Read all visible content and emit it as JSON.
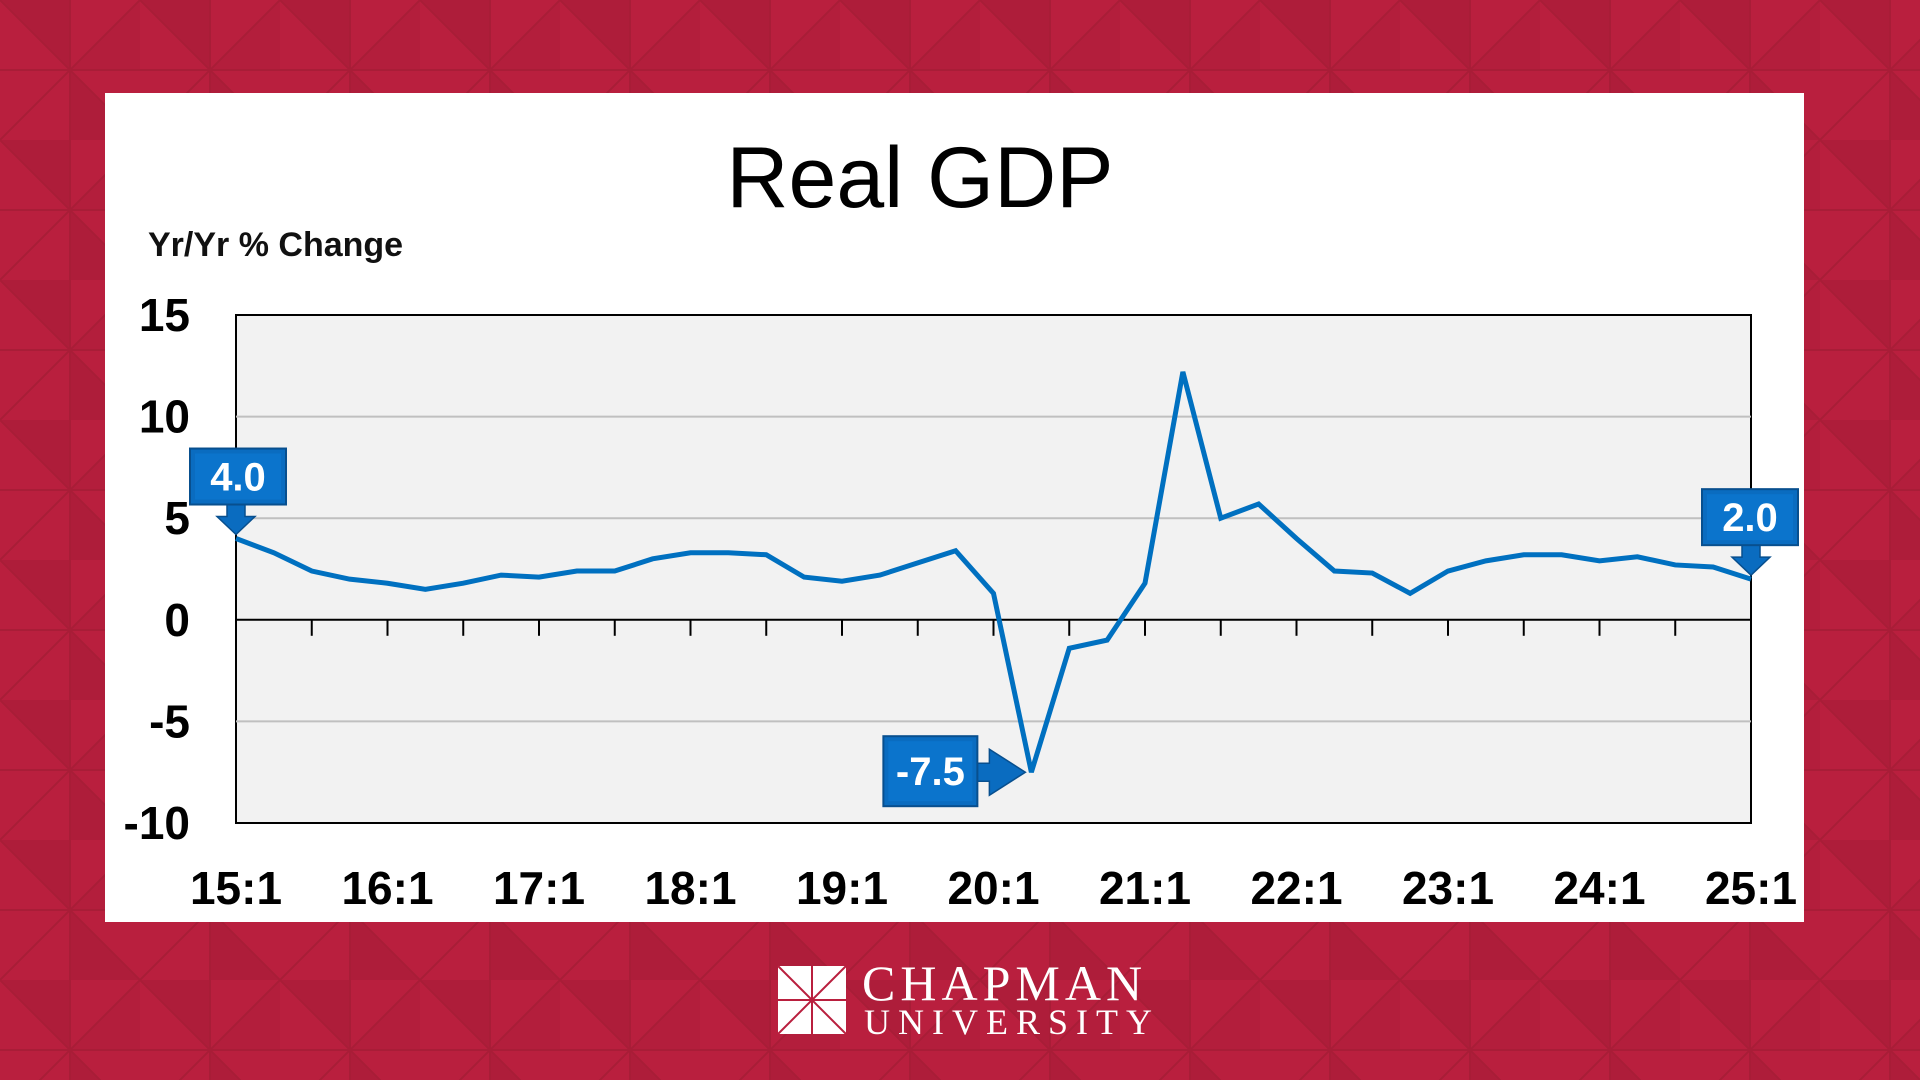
{
  "colors": {
    "background": "#B91F3E",
    "background_dark": "#A81D37",
    "line": "#0070C0",
    "plot_bg": "#F2F2F2",
    "callout": "#0A6CC0"
  },
  "logo": {
    "line1": "CHAPMAN",
    "line2": "UNIVERSITY"
  },
  "chart_data": {
    "type": "line",
    "title": "Real GDP",
    "ylabel": "Yr/Yr % Change",
    "xlabel": "",
    "ylim": [
      -10,
      15
    ],
    "yticks": [
      "15",
      "10",
      "5",
      "0",
      "-5",
      "-10"
    ],
    "ytick_values": [
      15,
      10,
      5,
      0,
      -5,
      -10
    ],
    "xtick_labels": [
      "15:1",
      "16:1",
      "17:1",
      "18:1",
      "19:1",
      "20:1",
      "21:1",
      "22:1",
      "23:1",
      "24:1",
      "25:1"
    ],
    "grid": "horizontal",
    "series": [
      {
        "name": "Real GDP Yr/Yr % Change",
        "start": "15:1",
        "frequency": "quarterly",
        "values": [
          4.0,
          3.3,
          2.4,
          2.0,
          1.8,
          1.5,
          1.8,
          2.2,
          2.1,
          2.4,
          2.4,
          3.0,
          3.3,
          3.3,
          3.2,
          2.1,
          1.9,
          2.2,
          2.8,
          3.4,
          1.3,
          -7.5,
          -1.4,
          -1.0,
          1.8,
          12.2,
          5.0,
          5.7,
          4.0,
          2.4,
          2.3,
          1.3,
          2.4,
          2.9,
          3.2,
          3.2,
          2.9,
          3.1,
          2.7,
          2.6,
          2.0
        ]
      }
    ],
    "annotations": [
      {
        "label": "4.0",
        "period": "15:1",
        "value": 4.0,
        "arrow": "down"
      },
      {
        "label": "-7.5",
        "period": "20:2",
        "value": -7.5,
        "arrow": "right"
      },
      {
        "label": "2.0",
        "period": "25:1",
        "value": 2.0,
        "arrow": "down"
      }
    ]
  }
}
